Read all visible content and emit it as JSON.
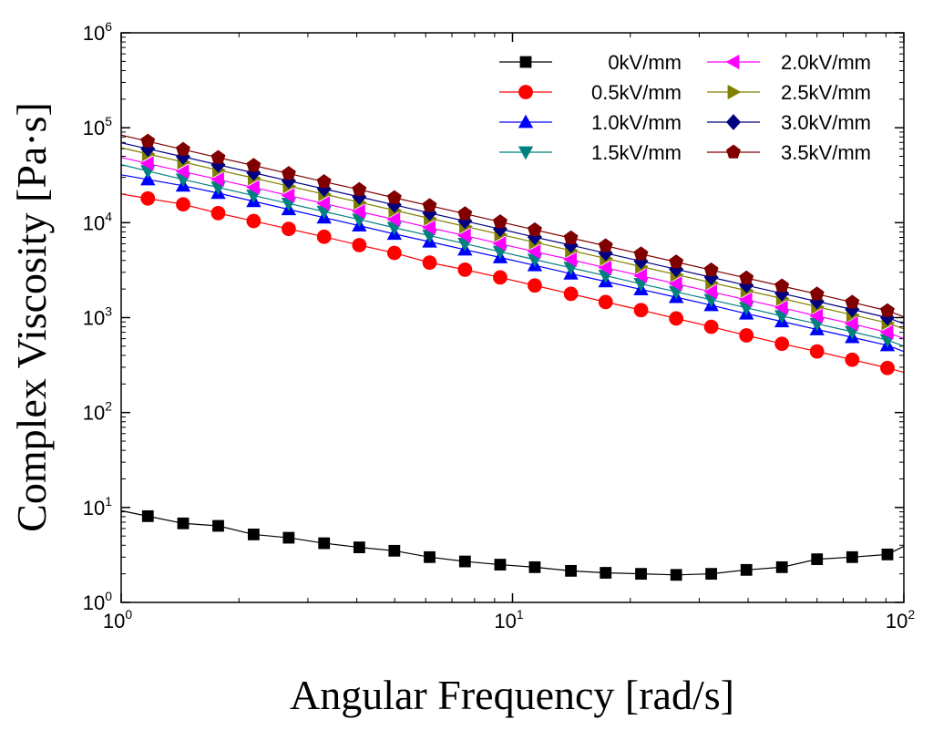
{
  "chart_data": {
    "type": "scatter",
    "scale": "log-log",
    "title": "",
    "xlabel": "Angular Frequency [rad/s]",
    "ylabel": "Complex Viscosity [Pa·s]",
    "xlim": [
      1,
      100
    ],
    "ylim": [
      1,
      1000000
    ],
    "x_ticks": [
      {
        "base": "10",
        "exp": "0"
      },
      {
        "base": "10",
        "exp": "1"
      },
      {
        "base": "10",
        "exp": "2"
      }
    ],
    "y_ticks": [
      {
        "base": "10",
        "exp": "0"
      },
      {
        "base": "10",
        "exp": "1"
      },
      {
        "base": "10",
        "exp": "2"
      },
      {
        "base": "10",
        "exp": "3"
      },
      {
        "base": "10",
        "exp": "4"
      },
      {
        "base": "10",
        "exp": "5"
      },
      {
        "base": "10",
        "exp": "6"
      }
    ],
    "x": [
      1.17,
      1.44,
      1.77,
      2.18,
      2.68,
      3.3,
      4.06,
      4.99,
      6.14,
      7.56,
      9.3,
      11.4,
      14.1,
      17.3,
      21.3,
      26.2,
      32.2,
      39.6,
      48.8,
      60.0,
      73.8,
      90.8
    ],
    "series": [
      {
        "name": "0kV/mm",
        "color": "#000000",
        "marker": "square",
        "values": [
          8.1,
          6.8,
          6.4,
          5.2,
          4.8,
          4.2,
          3.8,
          3.5,
          3.0,
          2.7,
          2.5,
          2.35,
          2.15,
          2.05,
          2.0,
          1.95,
          2.0,
          2.2,
          2.35,
          2.85,
          3.0,
          3.2
        ],
        "line_end": 3.9
      },
      {
        "name": "0.5kV/mm",
        "color": "#ff0000",
        "marker": "circle",
        "values": [
          18000,
          15600,
          12600,
          10400,
          8600,
          7100,
          5800,
          4800,
          3800,
          3200,
          2650,
          2180,
          1780,
          1460,
          1200,
          980,
          800,
          650,
          530,
          440,
          360,
          295
        ],
        "line_end": 265
      },
      {
        "name": "1.0kV/mm",
        "color": "#0000ff",
        "marker": "triangle-up",
        "values": [
          28500,
          24500,
          20500,
          16800,
          13800,
          11300,
          9300,
          7600,
          6300,
          5200,
          4300,
          3550,
          2900,
          2400,
          1980,
          1640,
          1350,
          1100,
          910,
          750,
          620,
          510
        ],
        "line_end": 440
      },
      {
        "name": "1.5kV/mm",
        "color": "#008080",
        "marker": "triangle-down",
        "values": [
          35000,
          28500,
          23500,
          19300,
          15900,
          13100,
          10800,
          8850,
          7300,
          6000,
          4950,
          4080,
          3350,
          2760,
          2270,
          1870,
          1540,
          1270,
          1040,
          860,
          710,
          580
        ],
        "line_end": 500
      },
      {
        "name": "2.0kV/mm",
        "color": "#ff00ff",
        "marker": "triangle-left",
        "values": [
          42000,
          34500,
          28500,
          23500,
          19300,
          15900,
          13100,
          10800,
          8850,
          7300,
          6000,
          4950,
          4080,
          3350,
          2760,
          2270,
          1870,
          1540,
          1270,
          1040,
          860,
          700
        ],
        "line_end": 600
      },
      {
        "name": "2.5kV/mm",
        "color": "#808000",
        "marker": "triangle-right",
        "values": [
          53000,
          43500,
          35800,
          29500,
          24300,
          20000,
          16400,
          13500,
          11100,
          9150,
          7530,
          6200,
          5100,
          4200,
          3450,
          2840,
          2340,
          1930,
          1590,
          1300,
          1070,
          880
        ],
        "line_end": 760
      },
      {
        "name": "3.0kV/mm",
        "color": "#000080",
        "marker": "diamond",
        "values": [
          60000,
          49500,
          40700,
          33500,
          27600,
          22700,
          18700,
          15400,
          12650,
          10400,
          8570,
          7050,
          5800,
          4770,
          3930,
          3230,
          2660,
          2190,
          1800,
          1480,
          1220,
          1000
        ],
        "line_end": 860
      },
      {
        "name": "3.5kV/mm",
        "color": "#800000",
        "marker": "pentagon",
        "values": [
          72000,
          59000,
          48500,
          40000,
          32900,
          27000,
          22300,
          18300,
          15100,
          12400,
          10200,
          8400,
          6900,
          5700,
          4680,
          3850,
          3170,
          2610,
          2150,
          1770,
          1450,
          1180
        ],
        "line_end": 1020
      }
    ],
    "legend": {
      "position": "top-right",
      "columns": [
        [
          "0kV/mm",
          "0.5kV/mm",
          "1.0kV/mm",
          "1.5kV/mm"
        ],
        [
          "2.0kV/mm",
          "2.5kV/mm",
          "3.0kV/mm",
          "3.5kV/mm"
        ]
      ]
    }
  }
}
